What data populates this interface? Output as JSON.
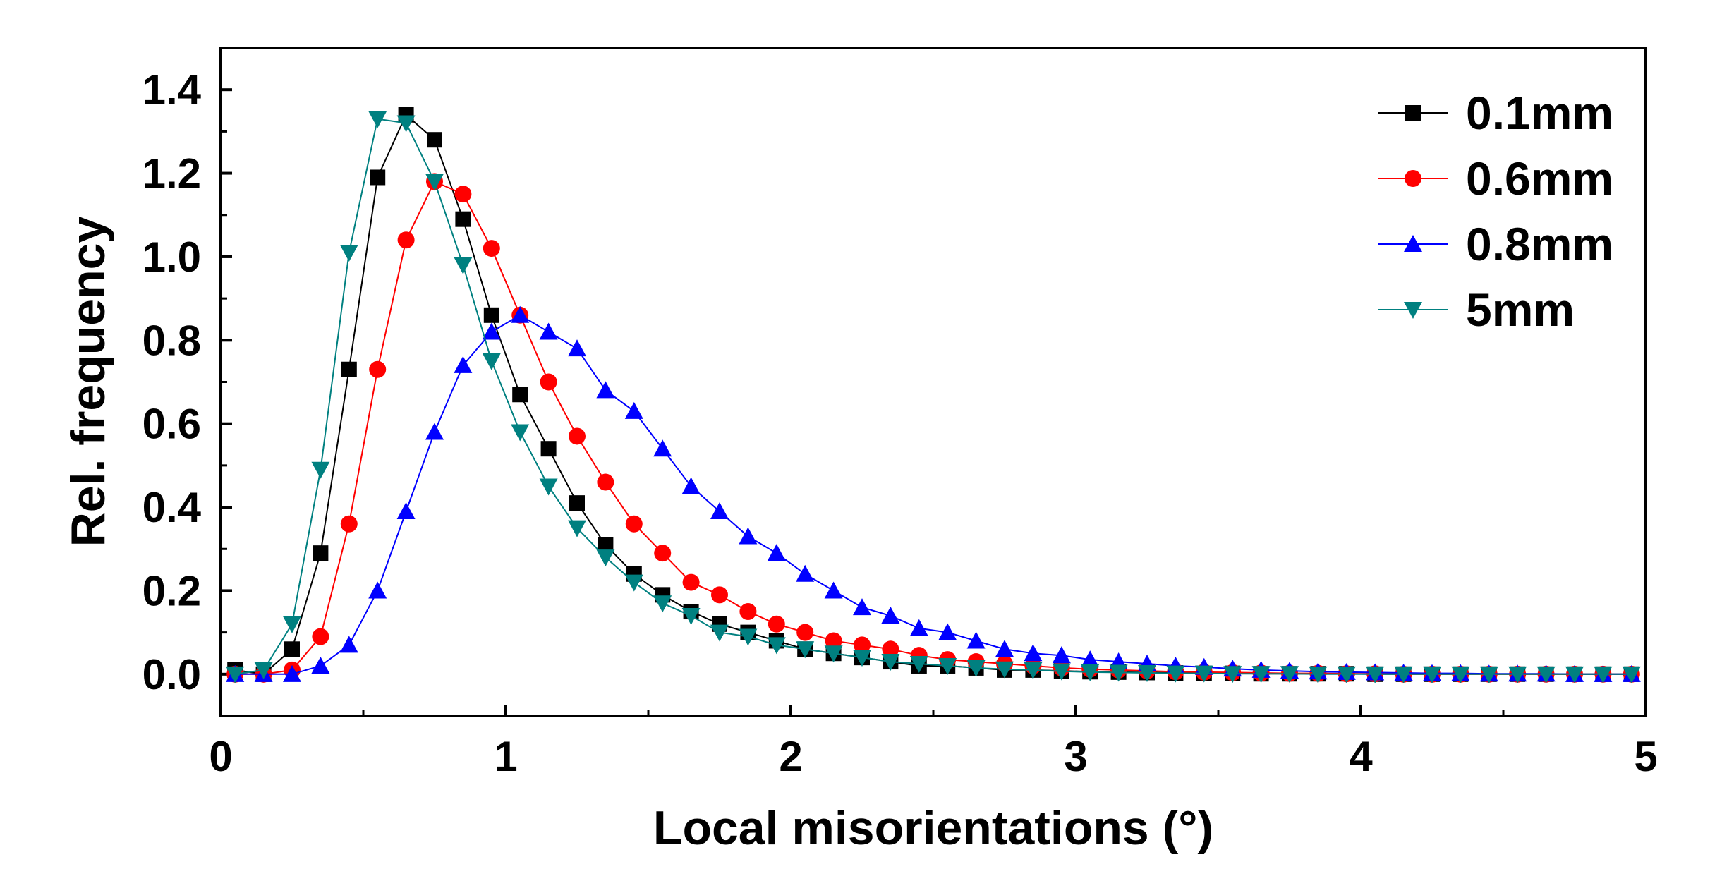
{
  "chart_data": {
    "type": "line",
    "title": "",
    "xlabel": "Local misorientations (°)",
    "ylabel": "Rel. frequency",
    "xlim": [
      0,
      5
    ],
    "ylim": [
      -0.1,
      1.5
    ],
    "x_ticks": [
      0,
      1,
      2,
      3,
      4,
      5
    ],
    "x_tick_labels": [
      "0",
      "1",
      "2",
      "3",
      "4",
      "5"
    ],
    "y_ticks": [
      0.0,
      0.2,
      0.4,
      0.6,
      0.8,
      1.0,
      1.2,
      1.4
    ],
    "y_tick_labels": [
      "0.0",
      "0.2",
      "0.4",
      "0.6",
      "0.8",
      "1.0",
      "1.2",
      "1.4"
    ],
    "grid": false,
    "legend_position": "top-right",
    "x": [
      0.05,
      0.15,
      0.25,
      0.35,
      0.45,
      0.55,
      0.65,
      0.75,
      0.85,
      0.95,
      1.05,
      1.15,
      1.25,
      1.35,
      1.45,
      1.55,
      1.65,
      1.75,
      1.85,
      1.95,
      2.05,
      2.15,
      2.25,
      2.35,
      2.45,
      2.55,
      2.65,
      2.75,
      2.85,
      2.95,
      3.05,
      3.15,
      3.25,
      3.35,
      3.45,
      3.55,
      3.65,
      3.75,
      3.85,
      3.95,
      4.05,
      4.15,
      4.25,
      4.35,
      4.45,
      4.55,
      4.65,
      4.75,
      4.85,
      4.95
    ],
    "series": [
      {
        "name": "0.1mm",
        "color": "#000000",
        "marker": "square",
        "values": [
          0.01,
          0.0,
          0.06,
          0.29,
          0.73,
          1.19,
          1.34,
          1.28,
          1.09,
          0.86,
          0.67,
          0.54,
          0.41,
          0.31,
          0.24,
          0.19,
          0.15,
          0.12,
          0.1,
          0.08,
          0.06,
          0.05,
          0.04,
          0.03,
          0.02,
          0.02,
          0.015,
          0.01,
          0.01,
          0.008,
          0.006,
          0.005,
          0.004,
          0.003,
          0.002,
          0.002,
          0.001,
          0.001,
          0.001,
          0.001,
          0.0,
          0.0,
          0.0,
          0.0,
          0.0,
          0.0,
          0.0,
          0.0,
          0.0,
          0.0
        ]
      },
      {
        "name": "0.6mm",
        "color": "#ff0000",
        "marker": "circle",
        "values": [
          0.0,
          0.0,
          0.01,
          0.09,
          0.36,
          0.73,
          1.04,
          1.18,
          1.15,
          1.02,
          0.86,
          0.7,
          0.57,
          0.46,
          0.36,
          0.29,
          0.22,
          0.19,
          0.15,
          0.12,
          0.1,
          0.08,
          0.07,
          0.06,
          0.045,
          0.035,
          0.03,
          0.025,
          0.02,
          0.015,
          0.012,
          0.01,
          0.008,
          0.006,
          0.005,
          0.004,
          0.003,
          0.002,
          0.002,
          0.001,
          0.001,
          0.0,
          0.0,
          0.0,
          0.0,
          0.0,
          0.0,
          0.0,
          0.0,
          0.0
        ]
      },
      {
        "name": "0.8mm",
        "color": "#0000ff",
        "marker": "triangle-up",
        "values": [
          0.0,
          0.0,
          0.0,
          0.02,
          0.07,
          0.2,
          0.39,
          0.58,
          0.74,
          0.82,
          0.86,
          0.82,
          0.78,
          0.68,
          0.63,
          0.54,
          0.45,
          0.39,
          0.33,
          0.29,
          0.24,
          0.2,
          0.16,
          0.14,
          0.11,
          0.1,
          0.08,
          0.06,
          0.05,
          0.045,
          0.035,
          0.03,
          0.025,
          0.02,
          0.017,
          0.013,
          0.01,
          0.008,
          0.006,
          0.005,
          0.004,
          0.003,
          0.002,
          0.002,
          0.001,
          0.001,
          0.001,
          0.0,
          0.0,
          0.0
        ]
      },
      {
        "name": "5mm",
        "color": "#008080",
        "marker": "triangle-down",
        "values": [
          0.0,
          0.01,
          0.12,
          0.49,
          1.01,
          1.33,
          1.32,
          1.18,
          0.98,
          0.75,
          0.58,
          0.45,
          0.35,
          0.28,
          0.22,
          0.17,
          0.14,
          0.1,
          0.09,
          0.07,
          0.06,
          0.05,
          0.04,
          0.03,
          0.025,
          0.02,
          0.015,
          0.012,
          0.01,
          0.007,
          0.005,
          0.004,
          0.003,
          0.002,
          0.002,
          0.001,
          0.001,
          0.001,
          0.0,
          0.0,
          0.0,
          0.0,
          0.0,
          0.0,
          0.0,
          0.0,
          0.0,
          0.0,
          0.0,
          0.0
        ]
      }
    ]
  }
}
